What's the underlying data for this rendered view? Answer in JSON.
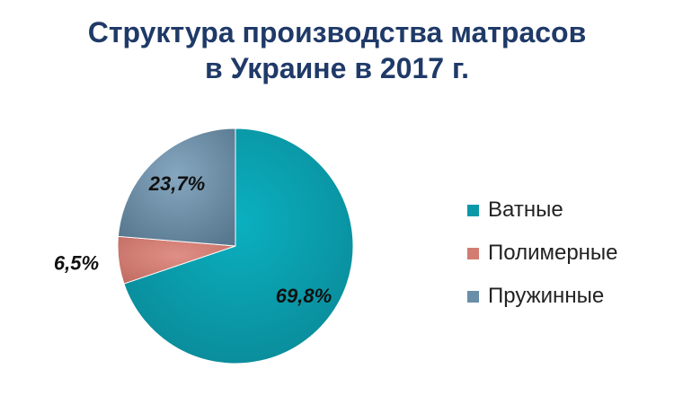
{
  "title_lines": [
    "Структура производства матрасов",
    "в Украине в 2017 г."
  ],
  "chart_data": {
    "type": "pie",
    "title": "Структура производства матрасов в Украине в 2017 г.",
    "categories": [
      "Ватные",
      "Полимерные",
      "Пружинные"
    ],
    "values": [
      69.8,
      6.5,
      23.7
    ],
    "labels": [
      "69,8%",
      "6,5%",
      "23,7%"
    ],
    "colors": [
      "#0a98a8",
      "#d27c72",
      "#6a8ea8"
    ],
    "start_angle_deg": 0,
    "direction": "clockwise",
    "legend_position": "right"
  }
}
